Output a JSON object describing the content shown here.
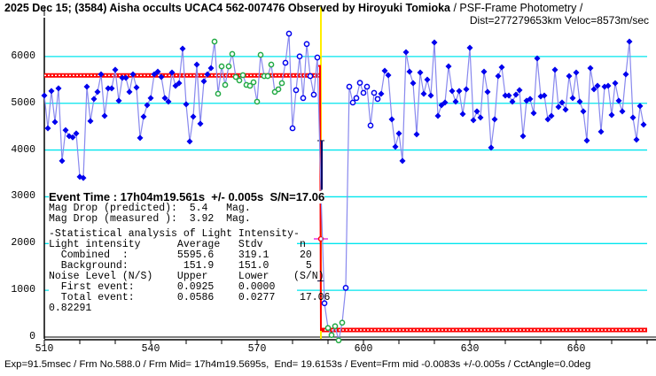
{
  "header": {
    "title": "2025 Dec 15; (3584) Aisha occults UCAC4 562-007476 Observed by Hiroyuki Tomioka",
    "title_suffix": " / PSF-Frame Photometry /",
    "subtitle": "Dist=277279653km Veloc=8573m/sec"
  },
  "info": {
    "event_time": "Event Time : 17h04m19.561s  +/- 0.005s  S/N=17.06",
    "mag_pred": "Mag Drop (predicted):  5.4   Mag.",
    "mag_meas": "Mag Drop (measured ):  3.92  Mag.",
    "stat_title": "-Statistical analysis of Light Intensity-",
    "li_header": "Light intensity      Average   Stdv      n",
    "combined": "  Combined  :        5595.6    319.1     20",
    "background": "  Background:         151.9    151.0      5",
    "noise_header": "Noise Level (N/S)    Upper     Lower    (S/N)",
    "first_event": "  First event:       0.0925    0.0000",
    "total_event": "  Total event:       0.0586    0.0277    17.06",
    "extra": "0.82291"
  },
  "footer": "Exp=91.5msec / Frm No.588.0 / Frm Mid= 17h4m19.5695s,  End= 19.6153s / Event=Frm mid -0.0083s +/-0.005s / CctAngle=0.0deg",
  "colors": {
    "filled_marker": "#0000ee",
    "open_marker": "#0000ee",
    "green_marker": "#22aa44",
    "line": "#8888ee",
    "grid": "#00e5ee",
    "level": "#ff0000",
    "event_line": "#ffee00"
  },
  "chart_data": {
    "type": "line",
    "xlabel": "",
    "ylabel": "",
    "xlim": [
      510,
      680
    ],
    "ylim": [
      0,
      6830
    ],
    "x_ticks": [
      "510",
      "540",
      "570",
      "600",
      "630",
      "660"
    ],
    "y_ticks": [
      "0",
      "1000",
      "2000",
      "3000",
      "4000",
      "5000",
      "6000"
    ],
    "grid": true,
    "x_start": 510,
    "x_step": 1,
    "values": [
      5166,
      4466,
      5261,
      4600,
      5318,
      3768,
      4424,
      4297,
      4272,
      4354,
      3427,
      3403,
      5355,
      4618,
      5091,
      5242,
      5620,
      4731,
      5318,
      5318,
      5715,
      5053,
      5544,
      5544,
      5242,
      5620,
      5337,
      4259,
      4713,
      4959,
      5110,
      5620,
      5677,
      5563,
      5110,
      5034,
      5658,
      5374,
      5431,
      6168,
      4978,
      4184,
      4713,
      5828,
      4562,
      5469,
      5620,
      5752,
      6319,
      5204,
      5790,
      5393,
      5790,
      6055,
      5563,
      5488,
      5601,
      5393,
      5374,
      5450,
      5034,
      6036,
      5582,
      5582,
      5828,
      5242,
      5299,
      5431,
      5866,
      6490,
      4466,
      5280,
      6002,
      5110,
      6267,
      5582,
      5185,
      5979,
      3150,
      724,
      195,
      43,
      232,
      -70,
      308,
      1053,
      5355,
      5015,
      5110,
      5438,
      5223,
      5355,
      4524,
      5223,
      5091,
      5204,
      5696,
      5601,
      4656,
      4070,
      4354,
      3768,
      6093,
      5677,
      5431,
      4335,
      5658,
      5204,
      5506,
      5166,
      6300,
      4731,
      4959,
      5015,
      5790,
      5261,
      5034,
      5261,
      4769,
      5299,
      6187,
      4637,
      4826,
      4694,
      5677,
      5242,
      4051,
      4656,
      5582,
      5771,
      5166,
      5166,
      5034,
      5185,
      5280,
      4297,
      5053,
      5091,
      4788,
      5960,
      5147,
      5166,
      4656,
      4731,
      5715,
      4921,
      5015,
      4864,
      5582,
      5110,
      5658,
      5034,
      4826,
      4202,
      5752,
      5299,
      5374,
      4391,
      5355,
      5374,
      4750,
      5431,
      5053,
      4826,
      5620,
      6319,
      4694,
      4221,
      4940,
      4542
    ],
    "marker_segments": [
      {
        "from": 510,
        "to": 557,
        "kind": "filled"
      },
      {
        "from": 558,
        "to": 577,
        "kind": "green"
      },
      {
        "from": 578,
        "to": 587,
        "kind": "open"
      },
      {
        "from": 588,
        "to": 588,
        "kind": "none"
      },
      {
        "from": 589,
        "to": 589,
        "kind": "open"
      },
      {
        "from": 590,
        "to": 594,
        "kind": "green"
      },
      {
        "from": 595,
        "to": 604,
        "kind": "open"
      },
      {
        "from": 605,
        "to": 679,
        "kind": "filled"
      }
    ],
    "levels": [
      {
        "name": "combined",
        "from": 510,
        "to": 588,
        "value": 5595.6
      },
      {
        "name": "background",
        "from": 588,
        "to": 680,
        "value": 151.9
      }
    ],
    "event_frame": 588,
    "event_marker_value": 2100
  }
}
